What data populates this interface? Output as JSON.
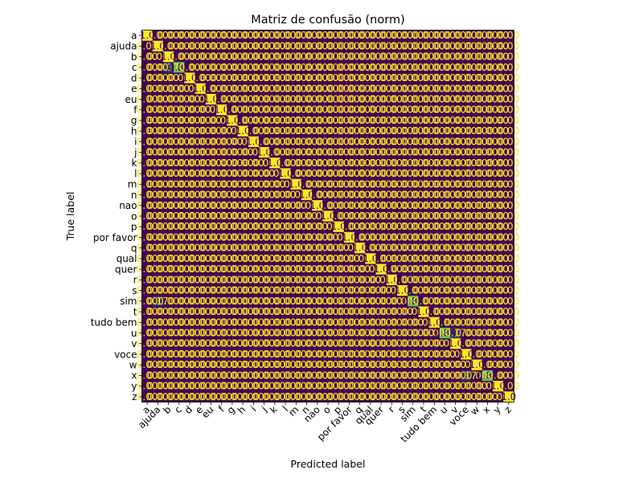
{
  "chart_data": {
    "type": "heatmap",
    "title": "Matriz de confusão (norm)",
    "xlabel": "Predicted label",
    "ylabel": "True label",
    "labels": [
      "a",
      "ajuda",
      "b",
      "c",
      "d",
      "e",
      "eu",
      "f",
      "g",
      "h",
      "i",
      "j",
      "k",
      "l",
      "m",
      "n",
      "nao",
      "o",
      "p",
      "por favor",
      "q",
      "qual",
      "quer",
      "r",
      "s",
      "sim",
      "t",
      "tudo bem",
      "u",
      "v",
      "voce",
      "w",
      "x",
      "y",
      "z"
    ],
    "zero_text": "0.00",
    "one_text": "1.0",
    "off_diagonal": [
      {
        "row": 3,
        "col": 2,
        "value": 0.17
      },
      {
        "row": 25,
        "col": 1,
        "value": 0.17
      },
      {
        "row": 28,
        "col": 29,
        "value": 0.17
      },
      {
        "row": 32,
        "col": 30,
        "value": 0.17
      }
    ],
    "diagonal_overrides": [
      {
        "index": 3,
        "value": 0.83
      },
      {
        "index": 25,
        "value": 0.83
      },
      {
        "index": 28,
        "value": 0.83
      },
      {
        "index": 32,
        "value": 0.83
      }
    ],
    "vmin": 0,
    "vmax": 1,
    "colormap": "viridis",
    "colorbar": false,
    "colors": {
      "low": "#440154",
      "mid": "#69c25b",
      "high": "#fde725",
      "text_on_dark": "#fde725",
      "text_on_light": "#440154"
    }
  }
}
